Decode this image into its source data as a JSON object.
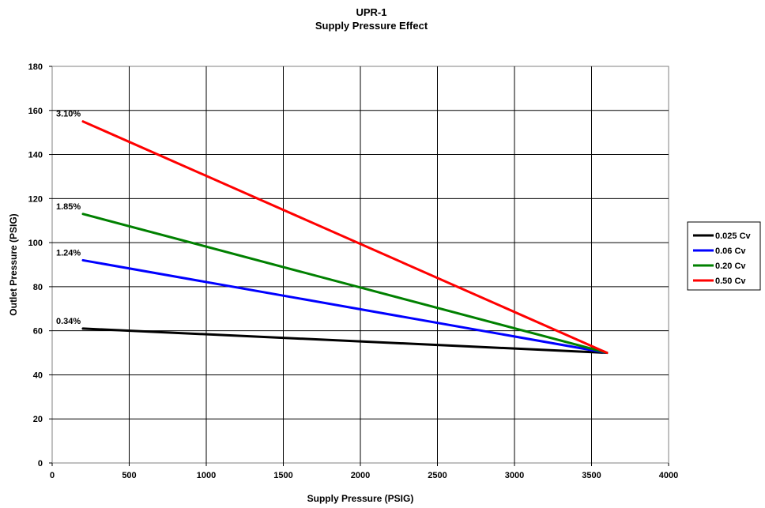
{
  "chart_data": {
    "type": "line",
    "title": "UPR-1",
    "subtitle": "Supply Pressure Effect",
    "xlabel": "Supply Pressure (PSIG)",
    "ylabel": "Outlet Pressure (PSIG)",
    "xlim": [
      0,
      4000
    ],
    "ylim": [
      0,
      180
    ],
    "x_ticks": [
      "0",
      "500",
      "1000",
      "1500",
      "2000",
      "2500",
      "3000",
      "3500",
      "4000"
    ],
    "y_ticks": [
      "0",
      "20",
      "40",
      "60",
      "80",
      "100",
      "120",
      "140",
      "160",
      "180"
    ],
    "x_tick_values": [
      0,
      500,
      1000,
      1500,
      2000,
      2500,
      3000,
      3500,
      4000
    ],
    "y_tick_values": [
      0,
      20,
      40,
      60,
      80,
      100,
      120,
      140,
      160,
      180
    ],
    "grid": true,
    "legend_position": "right",
    "series": [
      {
        "name": "0.025 Cv",
        "color": "#000000",
        "x": [
          200,
          3600
        ],
        "y": [
          61,
          50
        ]
      },
      {
        "name": "0.06 Cv",
        "color": "#0000ff",
        "x": [
          200,
          3600
        ],
        "y": [
          92,
          50
        ]
      },
      {
        "name": "0.20 Cv",
        "color": "#008000",
        "x": [
          200,
          3600
        ],
        "y": [
          113,
          50
        ]
      },
      {
        "name": "0.50 Cv",
        "color": "#ff0000",
        "x": [
          200,
          3600
        ],
        "y": [
          155,
          50
        ]
      }
    ],
    "annotations": [
      {
        "text": "0.34%",
        "x": 200,
        "y": 61
      },
      {
        "text": "1.24%",
        "x": 200,
        "y": 92
      },
      {
        "text": "1.85%",
        "x": 200,
        "y": 113
      },
      {
        "text": "3.10%",
        "x": 200,
        "y": 155
      }
    ]
  }
}
